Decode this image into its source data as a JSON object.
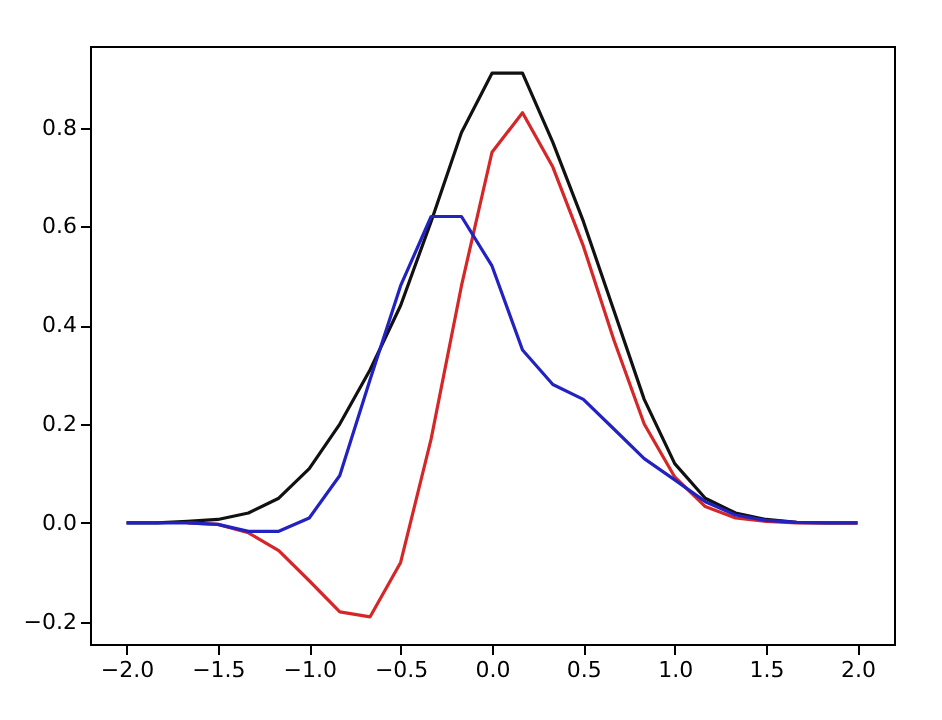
{
  "chart_data": {
    "type": "line",
    "x": [
      -2,
      -1.833,
      -1.667,
      -1.5,
      -1.333,
      -1.167,
      -1,
      -0.833,
      -0.667,
      -0.5,
      -0.333,
      -0.167,
      0,
      0.167,
      0.333,
      0.5,
      0.667,
      0.833,
      1,
      1.167,
      1.333,
      1.5,
      1.667,
      1.833,
      2
    ],
    "series": [
      {
        "color": "#111111",
        "values": [
          0,
          0,
          0.003,
          0.007,
          0.02,
          0.05,
          0.11,
          0.2,
          0.31,
          0.44,
          0.61,
          0.79,
          0.91,
          0.91,
          0.77,
          0.61,
          0.43,
          0.25,
          0.12,
          0.05,
          0.02,
          0.007,
          0.001,
          0,
          0
        ]
      },
      {
        "color": "#d62728",
        "values": [
          null,
          null,
          0,
          -0.003,
          -0.02,
          -0.056,
          -0.117,
          -0.18,
          -0.19,
          -0.08,
          0.17,
          0.48,
          0.75,
          0.83,
          0.72,
          0.56,
          0.37,
          0.2,
          0.093,
          0.033,
          0.01,
          0.003,
          0,
          0,
          0
        ]
      },
      {
        "color": "#2222c0",
        "values": [
          0,
          0,
          0,
          -0.003,
          -0.017,
          -0.017,
          0.01,
          0.096,
          0.29,
          0.48,
          0.62,
          0.62,
          0.52,
          0.35,
          0.28,
          0.25,
          0.19,
          0.13,
          0.087,
          0.043,
          0.016,
          0.005,
          0.001,
          0,
          0
        ]
      }
    ],
    "xlim": [
      -2.2,
      2.2
    ],
    "xticks": [
      {
        "value": -2,
        "label": "−2.0"
      },
      {
        "value": -1.5,
        "label": "−1.5"
      },
      {
        "value": -1,
        "label": "−1.0"
      },
      {
        "value": -0.5,
        "label": "−0.5"
      },
      {
        "value": 0,
        "label": "0.0"
      },
      {
        "value": 0.5,
        "label": "0.5"
      },
      {
        "value": 1,
        "label": "1.0"
      },
      {
        "value": 1.5,
        "label": "1.5"
      },
      {
        "value": 2,
        "label": "2.0"
      }
    ],
    "ylim": [
      -0.245,
      0.965
    ],
    "yticks": [
      {
        "value": -0.2,
        "label": "−0.2"
      },
      {
        "value": 0,
        "label": "0.0"
      },
      {
        "value": 0.2,
        "label": "0.2"
      },
      {
        "value": 0.4,
        "label": "0.4"
      },
      {
        "value": 0.6,
        "label": "0.6"
      },
      {
        "value": 0.8,
        "label": "0.8"
      }
    ],
    "grid": false
  }
}
